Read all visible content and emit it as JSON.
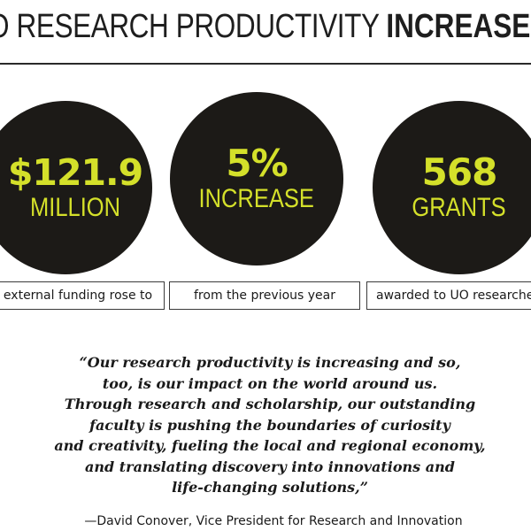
{
  "headline": {
    "part1": "O RESEARCH PRODUCTIVITY ",
    "part2": "INCREASE"
  },
  "stats": [
    {
      "value": "$121.9",
      "unit": "MILLION",
      "caption": "external funding rose to"
    },
    {
      "value": "5%",
      "unit": "INCREASE",
      "caption": "from the previous year"
    },
    {
      "value": "568",
      "unit": "GRANTS",
      "caption": "awarded to UO researche"
    }
  ],
  "quote": {
    "lines": [
      "“Our research productivity is increasing and so,",
      "too, is our impact on the world around us.",
      "Through research and scholarship, our outstanding",
      "faculty is pushing the boundaries of curiosity",
      "and creativity, fueling the local and regional economy,",
      "and translating discovery into innovations and",
      "life-changing solutions,”"
    ],
    "attribution": "—David Conover, Vice President for Research and Innovation"
  },
  "colors": {
    "accent": "#d4e02a",
    "circle": "#1c1a17",
    "text": "#1a1a1a"
  }
}
